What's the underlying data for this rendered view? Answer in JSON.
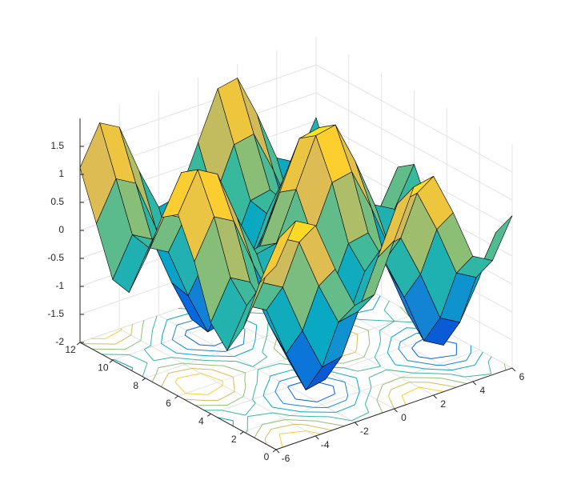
{
  "chart_data": {
    "type": "surface",
    "x": [
      -6,
      -5,
      -4,
      -3,
      -2,
      -1,
      0,
      1,
      2,
      3,
      4,
      5,
      6
    ],
    "y": [
      0,
      1,
      2,
      3,
      4,
      5,
      6,
      7,
      8,
      9,
      10,
      11,
      12
    ],
    "z": [
      [
        1.28,
        1.96,
        1.76,
        0.86,
        0.09,
        0.16,
        1,
        1.84,
        1.91,
        1.14,
        0.24,
        0.04,
        0.72
      ],
      [
        0.82,
        1.5,
        1.3,
        0.4,
        -0.37,
        -0.3,
        0.54,
        1.38,
        1.45,
        0.68,
        -0.22,
        -0.42,
        0.26
      ],
      [
        -0.14,
        0.54,
        0.34,
        -0.56,
        -1.33,
        -1.26,
        -0.42,
        0.42,
        0.49,
        -0.28,
        -1.18,
        -1.38,
        -0.7
      ],
      [
        -0.71,
        -0.03,
        -0.23,
        -1.13,
        -1.9,
        -1.83,
        -0.99,
        -0.15,
        -0.08,
        -0.85,
        -1.75,
        -1.95,
        -1.27
      ],
      [
        -0.37,
        0.31,
        0.11,
        -0.79,
        -1.56,
        -1.49,
        -0.65,
        0.19,
        0.26,
        -0.51,
        -1.41,
        -1.61,
        -0.93
      ],
      [
        0.56,
        1.24,
        1.04,
        0.14,
        -0.63,
        -0.56,
        0.28,
        1.12,
        1.19,
        0.42,
        -0.48,
        -0.68,
        0
      ],
      [
        1.24,
        1.92,
        1.72,
        0.82,
        0.05,
        0.12,
        0.96,
        1.8,
        1.87,
        1.1,
        0.2,
        0,
        0.68
      ],
      [
        1.03,
        1.71,
        1.51,
        0.61,
        -0.16,
        -0.09,
        0.75,
        1.59,
        1.66,
        0.89,
        -0.01,
        -0.21,
        0.47
      ],
      [
        0.13,
        0.81,
        0.61,
        -0.29,
        -1.06,
        -0.99,
        -0.15,
        0.69,
        0.76,
        -0.01,
        -0.91,
        -1.11,
        -0.43
      ],
      [
        -0.63,
        0.05,
        -0.15,
        -1.05,
        -1.82,
        -1.75,
        -0.91,
        -0.07,
        0,
        -0.77,
        -1.67,
        -1.87,
        -1.19
      ],
      [
        -0.56,
        0.12,
        -0.08,
        -0.98,
        -1.75,
        -1.68,
        -0.84,
        0,
        0.07,
        -0.7,
        -1.6,
        -1.8,
        -1.12
      ],
      [
        0.28,
        0.96,
        0.76,
        -0.14,
        -0.91,
        -0.84,
        0,
        0.84,
        0.91,
        0.14,
        -0.76,
        -0.96,
        -0.28
      ],
      [
        1.12,
        1.8,
        1.6,
        0.7,
        -0.07,
        0,
        0.84,
        1.68,
        1.75,
        0.98,
        0.08,
        -0.12,
        0.56
      ]
    ],
    "xlim": [
      -6,
      6
    ],
    "ylim": [
      0,
      12
    ],
    "zlim": [
      -2,
      2
    ],
    "xticks": [
      -6,
      -4,
      -2,
      0,
      2,
      4,
      6
    ],
    "yticks": [
      0,
      2,
      4,
      6,
      8,
      10,
      12
    ],
    "zticks": [
      -2,
      -1.5,
      -1,
      -0.5,
      0,
      0.5,
      1,
      1.5
    ],
    "contour_levels": [
      -1.5,
      -1,
      -0.5,
      0,
      0.5,
      1,
      1.5
    ],
    "grid": true,
    "edge_color": "#000000",
    "colormap": [
      "#352a87",
      "#0363e1",
      "#1485d4",
      "#06a7c6",
      "#38b99e",
      "#92bf73",
      "#d9ba56",
      "#fcce2e",
      "#f9fb0e"
    ]
  }
}
